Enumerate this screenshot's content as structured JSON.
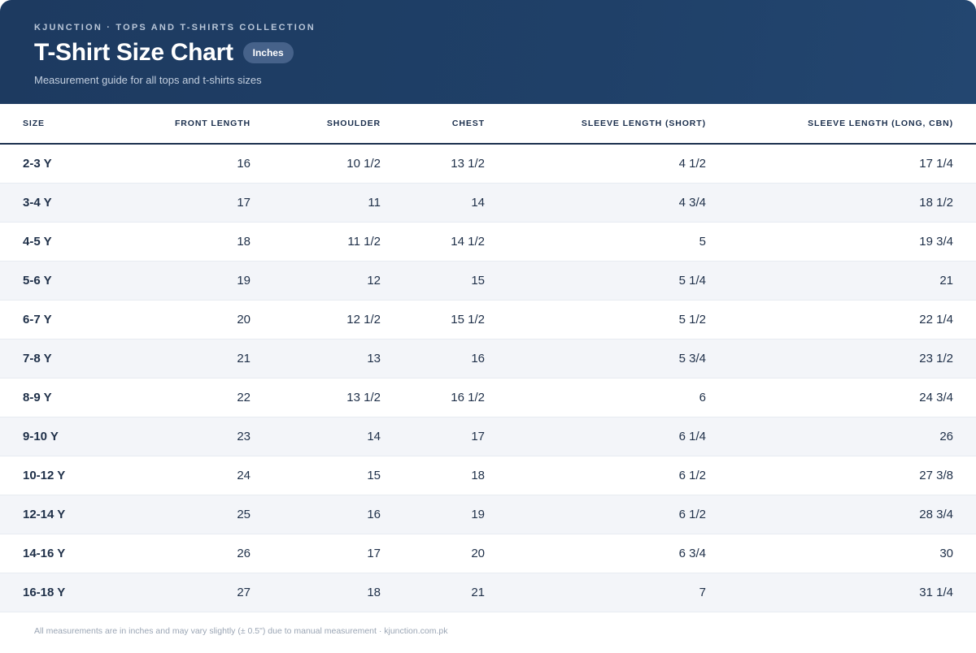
{
  "header": {
    "eyebrow": "KJUNCTION · TOPS AND T-SHIRTS COLLECTION",
    "title": "T-Shirt Size Chart",
    "badge": "Inches",
    "subtitle": "Measurement guide for all tops and t-shirts sizes"
  },
  "table": {
    "columns": [
      "SIZE",
      "FRONT LENGTH",
      "SHOULDER",
      "CHEST",
      "SLEEVE LENGTH (SHORT)",
      "SLEEVE LENGTH (LONG, CBN)"
    ],
    "rows": [
      [
        "2-3 Y",
        "16",
        "10 1/2",
        "13 1/2",
        "4 1/2",
        "17 1/4"
      ],
      [
        "3-4 Y",
        "17",
        "11",
        "14",
        "4 3/4",
        "18 1/2"
      ],
      [
        "4-5 Y",
        "18",
        "11 1/2",
        "14 1/2",
        "5",
        "19 3/4"
      ],
      [
        "5-6 Y",
        "19",
        "12",
        "15",
        "5 1/4",
        "21"
      ],
      [
        "6-7 Y",
        "20",
        "12 1/2",
        "15 1/2",
        "5 1/2",
        "22 1/4"
      ],
      [
        "7-8 Y",
        "21",
        "13",
        "16",
        "5 3/4",
        "23 1/2"
      ],
      [
        "8-9 Y",
        "22",
        "13 1/2",
        "16 1/2",
        "6",
        "24 3/4"
      ],
      [
        "9-10 Y",
        "23",
        "14",
        "17",
        "6 1/4",
        "26"
      ],
      [
        "10-12 Y",
        "24",
        "15",
        "18",
        "6 1/2",
        "27 3/8"
      ],
      [
        "12-14 Y",
        "25",
        "16",
        "19",
        "6 1/2",
        "28 3/4"
      ],
      [
        "14-16 Y",
        "26",
        "17",
        "20",
        "6 3/4",
        "30"
      ],
      [
        "16-18 Y",
        "27",
        "18",
        "21",
        "7",
        "31 1/4"
      ]
    ]
  },
  "footer": {
    "note": "All measurements are in inches and may vary slightly (± 0.5\") due to manual measurement · kjunction.com.pk"
  }
}
